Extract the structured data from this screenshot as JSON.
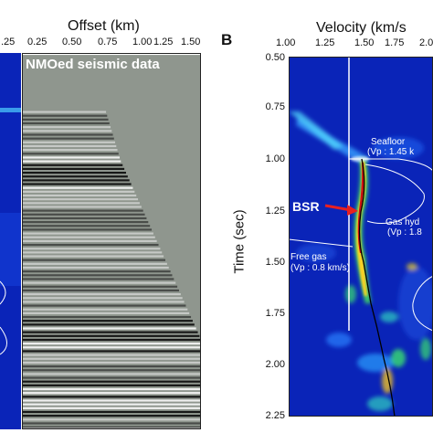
{
  "figure": {
    "panel_b_letter": "B",
    "left_strip": {
      "tick_label": ".25"
    },
    "seismic_panel": {
      "axis_title": "Offset (km)",
      "x_ticks": [
        "0.25",
        "0.50",
        "0.75",
        "1.00",
        "1.25",
        "1.50"
      ],
      "overlay_label": "NMOed seismic data"
    },
    "velocity_panel": {
      "axis_title": "Velocity (km/s",
      "y_axis_title": "Time (sec)",
      "x_ticks": [
        "1.00",
        "1.25",
        "1.50",
        "1.75",
        "2.0"
      ],
      "y_ticks": [
        "0.50",
        "0.75",
        "1.00",
        "1.25",
        "1.50",
        "1.75",
        "2.00",
        "2.25"
      ],
      "annotations": {
        "seafloor": "Seafloor",
        "seafloor_vp": "(Vp : 1.45 k",
        "bsr": "BSR",
        "gas_hydrate": "Gas hyd",
        "gas_hydrate_vp": "(Vp : 1.8",
        "free_gas": "Free gas",
        "free_gas_vp": "(Vp : 0.8 km/s)"
      }
    },
    "colors": {
      "semblance_background": "#0a24b8",
      "seismic_background": "#8f968e",
      "annotation_text": "#ffffff",
      "bsr_arrow": "#e82020",
      "picked_velocity_line": "#000000"
    }
  }
}
